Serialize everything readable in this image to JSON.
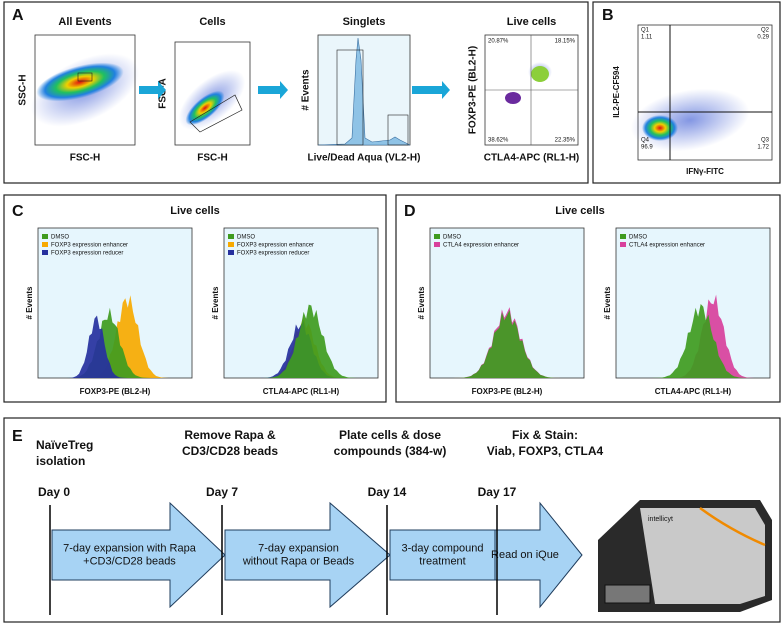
{
  "panel_a": {
    "letter": "A",
    "plots": [
      {
        "title": "All Events",
        "x_label": "FSC-H",
        "y_label": "SSC-H"
      },
      {
        "title": "Cells",
        "x_label": "FSC-H",
        "y_label": "FSC-A"
      },
      {
        "title": "Singlets",
        "x_label": "Live/Dead Aqua (VL2-H)",
        "y_label": "# Events"
      },
      {
        "title": "Live cells",
        "x_label": "CTLA4-APC (RL1-H)",
        "y_label": "FOXP3-PE (BL2-H)",
        "quadrants": [
          "20.87%",
          "18.15%",
          "38.62%",
          "22.35%"
        ]
      }
    ]
  },
  "panel_b": {
    "letter": "B",
    "x_label": "IFNγ-FITC",
    "y_label": "IL2-PE-CF594",
    "quadrants": [
      {
        "name": "Q1",
        "value": "1.11"
      },
      {
        "name": "Q2",
        "value": "0.29"
      },
      {
        "name": "Q4",
        "value": "96.9"
      },
      {
        "name": "Q3",
        "value": "1.72"
      }
    ]
  },
  "panel_c": {
    "letter": "C",
    "title": "Live cells",
    "legend": [
      {
        "name": "DMSO",
        "color": "#3f9b1f"
      },
      {
        "name": "FOXP3 expression enhancer",
        "color": "#f7a900"
      },
      {
        "name": "FOXP3 expression reducer",
        "color": "#26309e"
      }
    ],
    "plots": [
      {
        "x_label": "FOXP3-PE (BL2-H)",
        "y_label": "# Events"
      },
      {
        "x_label": "CTLA4-APC (RL1-H)",
        "y_label": "# Events"
      }
    ]
  },
  "panel_d": {
    "letter": "D",
    "title": "Live cells",
    "legend": [
      {
        "name": "DMSO",
        "color": "#3f9b1f"
      },
      {
        "name": "CTLA4 expression enhancer",
        "color": "#d8409c"
      }
    ],
    "plots": [
      {
        "x_label": "FOXP3-PE (BL2-H)",
        "y_label": "# Events"
      },
      {
        "x_label": "CTLA4-APC (RL1-H)",
        "y_label": "# Events"
      }
    ]
  },
  "panel_e": {
    "letter": "E",
    "steps": [
      {
        "heading": [
          "NaïveTreg",
          "isolation"
        ],
        "day": "Day 0"
      },
      {
        "heading": [
          "Remove Rapa &",
          "CD3/CD28 beads"
        ],
        "day": "Day 7"
      },
      {
        "heading": [
          "Plate cells & dose",
          "compounds (384-w)"
        ],
        "day": "Day 14"
      },
      {
        "heading": [
          "Fix & Stain:",
          "Viab, FOXP3, CTLA4"
        ],
        "day": "Day 17"
      }
    ],
    "arrows": [
      [
        "7-day expansion with Rapa",
        "+CD3/CD28 beads"
      ],
      [
        "7-day expansion",
        "without Rapa or Beads"
      ],
      [
        "3-day compound",
        "treatment"
      ],
      [
        "Read on iQue"
      ]
    ],
    "instrument_label": "intellicyt"
  }
}
